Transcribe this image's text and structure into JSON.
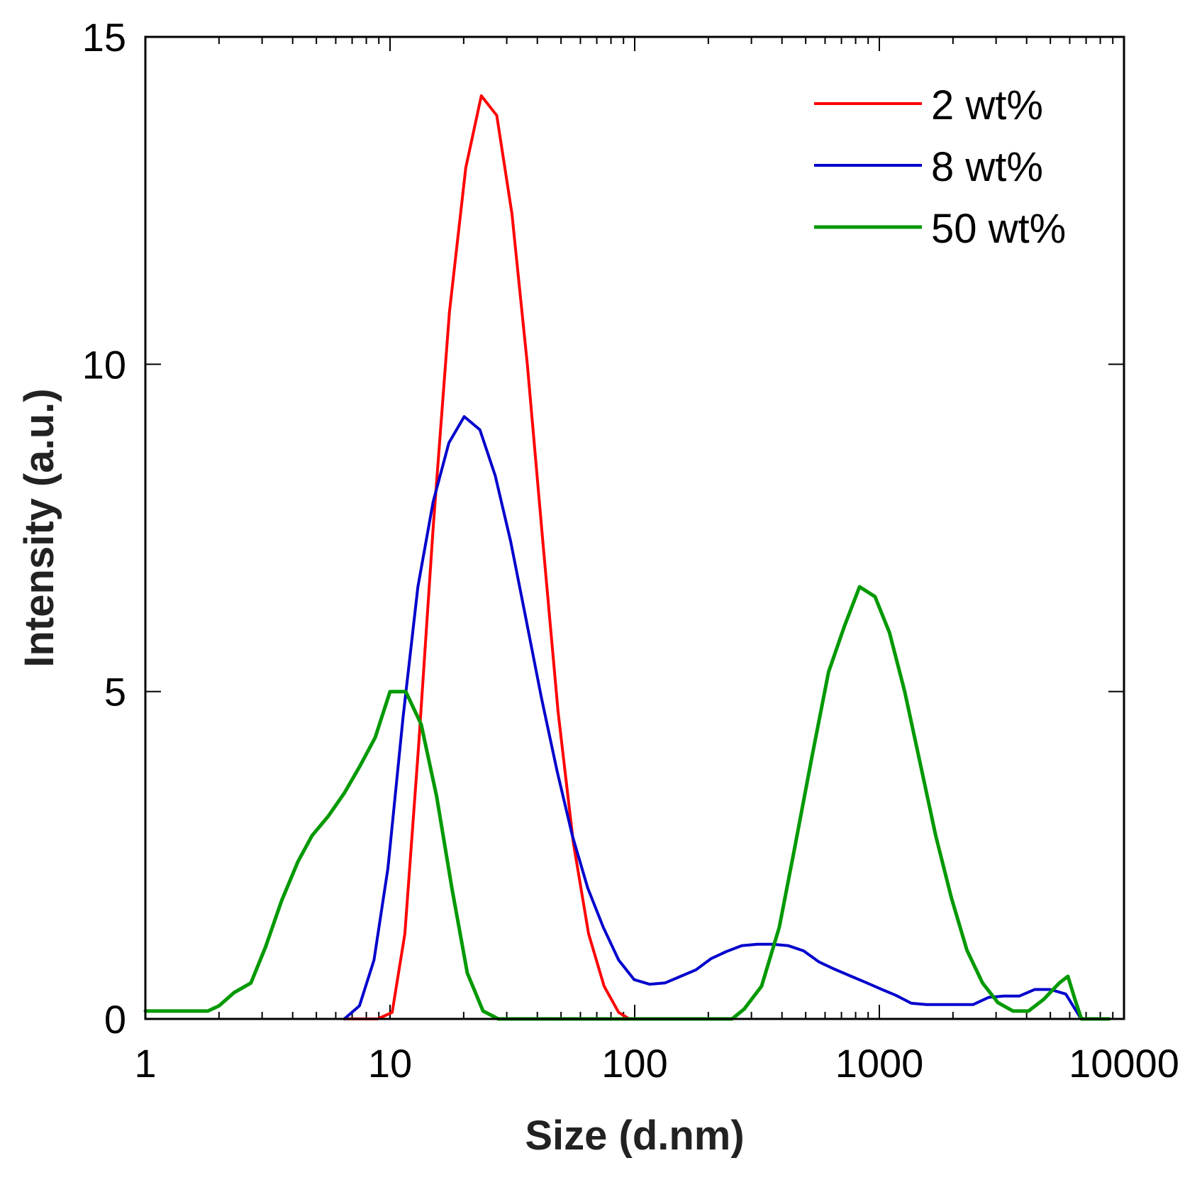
{
  "chart_data": {
    "type": "line",
    "xscale": "log",
    "title": "",
    "xlabel": "Size (d.nm)",
    "ylabel": "Intensity (a.u.)",
    "xlim": [
      1,
      10000
    ],
    "ylim": [
      0,
      15
    ],
    "xticks": [
      1,
      10,
      100,
      1000,
      10000
    ],
    "xtick_labels": [
      "1",
      "10",
      "100",
      "1000",
      "10000"
    ],
    "yticks": [
      0,
      5,
      10,
      15
    ],
    "ytick_labels": [
      "0",
      "5",
      "10",
      "15"
    ],
    "grid": false,
    "legend_position": "top-right",
    "series": [
      {
        "name": "2 wt%",
        "color": "#ff0000",
        "points": [
          [
            6.5,
            0
          ],
          [
            8.9,
            0
          ],
          [
            10.2,
            0.1
          ],
          [
            11.5,
            1.3
          ],
          [
            13.1,
            4.2
          ],
          [
            15,
            7.5
          ],
          [
            17.5,
            10.8
          ],
          [
            20.4,
            13
          ],
          [
            23.6,
            14.1
          ],
          [
            27.3,
            13.8
          ],
          [
            31.5,
            12.3
          ],
          [
            36.4,
            10
          ],
          [
            42.1,
            7.3
          ],
          [
            48.6,
            4.7
          ],
          [
            56.1,
            2.7
          ],
          [
            64.8,
            1.3
          ],
          [
            75,
            0.5
          ],
          [
            86,
            0.1
          ],
          [
            95,
            0
          ]
        ]
      },
      {
        "name": "8 wt%",
        "color": "#0000cc",
        "points": [
          [
            6.5,
            0
          ],
          [
            7.5,
            0.2
          ],
          [
            8.6,
            0.9
          ],
          [
            9.8,
            2.3
          ],
          [
            11.3,
            4.6
          ],
          [
            13,
            6.6
          ],
          [
            15,
            7.9
          ],
          [
            17.4,
            8.8
          ],
          [
            20.1,
            9.2
          ],
          [
            23.3,
            9
          ],
          [
            26.9,
            8.3
          ],
          [
            31.1,
            7.3
          ],
          [
            36,
            6.1
          ],
          [
            41.6,
            4.9
          ],
          [
            48.1,
            3.8
          ],
          [
            55.6,
            2.8
          ],
          [
            64.3,
            2
          ],
          [
            74.4,
            1.4
          ],
          [
            86,
            0.9
          ],
          [
            99.5,
            0.6
          ],
          [
            115,
            0.53
          ],
          [
            133,
            0.55
          ],
          [
            154,
            0.65
          ],
          [
            178,
            0.75
          ],
          [
            205,
            0.92
          ],
          [
            237,
            1.03
          ],
          [
            274,
            1.12
          ],
          [
            317,
            1.14
          ],
          [
            367,
            1.14
          ],
          [
            424,
            1.12
          ],
          [
            490,
            1.04
          ],
          [
            567,
            0.87
          ],
          [
            656,
            0.76
          ],
          [
            758,
            0.66
          ],
          [
            877,
            0.56
          ],
          [
            1010,
            0.46
          ],
          [
            1170,
            0.36
          ],
          [
            1350,
            0.24
          ],
          [
            1560,
            0.22
          ],
          [
            1810,
            0.22
          ],
          [
            2090,
            0.22
          ],
          [
            2420,
            0.22
          ],
          [
            2800,
            0.33
          ],
          [
            3230,
            0.35
          ],
          [
            3740,
            0.35
          ],
          [
            4320,
            0.45
          ],
          [
            5000,
            0.45
          ],
          [
            5780,
            0.38
          ],
          [
            6680,
            0
          ]
        ]
      },
      {
        "name": "50 wt%",
        "color": "#009900",
        "points": [
          [
            1,
            0.12
          ],
          [
            1.8,
            0.12
          ],
          [
            2,
            0.2
          ],
          [
            2.3,
            0.4
          ],
          [
            2.7,
            0.55
          ],
          [
            3.1,
            1.1
          ],
          [
            3.6,
            1.8
          ],
          [
            4.2,
            2.4
          ],
          [
            4.8,
            2.8
          ],
          [
            5.6,
            3.1
          ],
          [
            6.5,
            3.45
          ],
          [
            7.5,
            3.85
          ],
          [
            8.7,
            4.3
          ],
          [
            10,
            5
          ],
          [
            11.6,
            5
          ],
          [
            13.4,
            4.5
          ],
          [
            15.5,
            3.4
          ],
          [
            17.9,
            2
          ],
          [
            20.7,
            0.7
          ],
          [
            24,
            0.12
          ],
          [
            27.7,
            0
          ],
          [
            100,
            0
          ],
          [
            250,
            0
          ],
          [
            280,
            0.15
          ],
          [
            330,
            0.5
          ],
          [
            390,
            1.4
          ],
          [
            450,
            2.6
          ],
          [
            530,
            4
          ],
          [
            620,
            5.3
          ],
          [
            720,
            6
          ],
          [
            830,
            6.6
          ],
          [
            960,
            6.45
          ],
          [
            1100,
            5.9
          ],
          [
            1270,
            5
          ],
          [
            1470,
            3.9
          ],
          [
            1700,
            2.8
          ],
          [
            1970,
            1.85
          ],
          [
            2280,
            1.05
          ],
          [
            2640,
            0.55
          ],
          [
            3050,
            0.25
          ],
          [
            3520,
            0.12
          ],
          [
            4070,
            0.12
          ],
          [
            4700,
            0.3
          ],
          [
            5440,
            0.55
          ],
          [
            5900,
            0.65
          ],
          [
            6300,
            0.3
          ],
          [
            6700,
            0
          ],
          [
            8700,
            0
          ]
        ]
      }
    ]
  }
}
